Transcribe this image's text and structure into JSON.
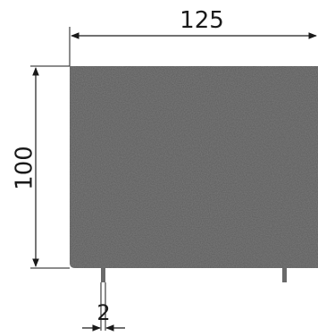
{
  "dimensions": {
    "width_label": "125",
    "height_label": "100",
    "leg_gap_label": "2"
  },
  "colors": {
    "panel": "#5b5b5b",
    "panel_dark": "#4a4a4a",
    "line": "#1a1a1a",
    "leg": "#6a6a6a"
  }
}
